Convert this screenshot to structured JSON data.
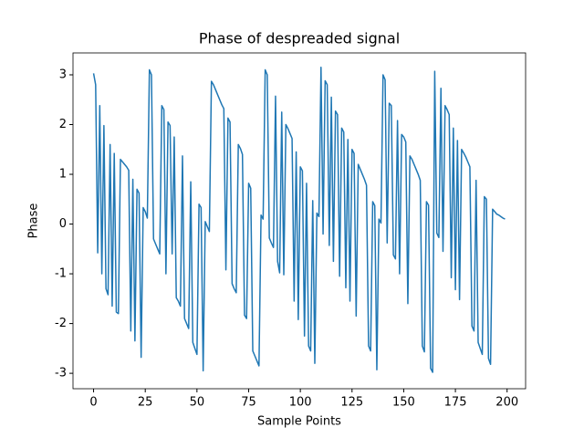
{
  "chart_data": {
    "type": "line",
    "title": "Phase of despreaded signal",
    "x_label": "Sample Points",
    "y_label": "Phase",
    "x": [
      0,
      1,
      2,
      3,
      4,
      5,
      6,
      7,
      8,
      9,
      10,
      11,
      12,
      13,
      14,
      15,
      16,
      17,
      18,
      19,
      20,
      21,
      22,
      23,
      24,
      25,
      26,
      27,
      28,
      29,
      30,
      31,
      32,
      33,
      34,
      35,
      36,
      37,
      38,
      39,
      40,
      41,
      42,
      43,
      44,
      45,
      46,
      47,
      48,
      49,
      50,
      51,
      52,
      53,
      54,
      55,
      56,
      57,
      58,
      59,
      60,
      61,
      62,
      63,
      64,
      65,
      66,
      67,
      68,
      69,
      70,
      71,
      72,
      73,
      74,
      75,
      76,
      77,
      78,
      79,
      80,
      81,
      82,
      83,
      84,
      85,
      86,
      87,
      88,
      89,
      90,
      91,
      92,
      93,
      94,
      95,
      96,
      97,
      98,
      99,
      100,
      101,
      102,
      103,
      104,
      105,
      106,
      107,
      108,
      109,
      110,
      111,
      112,
      113,
      114,
      115,
      116,
      117,
      118,
      119,
      120,
      121,
      122,
      123,
      124,
      125,
      126,
      127,
      128,
      129,
      130,
      131,
      132,
      133,
      134,
      135,
      136,
      137,
      138,
      139,
      140,
      141,
      142,
      143,
      144,
      145,
      146,
      147,
      148,
      149,
      150,
      151,
      152,
      153,
      154,
      155,
      156,
      157,
      158,
      159,
      160,
      161,
      162,
      163,
      164,
      165,
      166,
      167,
      168,
      169,
      170,
      171,
      172,
      173,
      174,
      175,
      176,
      177,
      178,
      179,
      180,
      181,
      182,
      183,
      184,
      185,
      186,
      187,
      188,
      189,
      190,
      191,
      192,
      193,
      194,
      195,
      196,
      197,
      198,
      199
    ],
    "series": [
      {
        "color": "#1f77b4",
        "values": [
          3.03,
          2.8,
          -0.58,
          2.38,
          -1.0,
          1.98,
          -1.3,
          -1.42,
          1.6,
          -1.65,
          1.42,
          -1.77,
          -1.8,
          1.3,
          1.25,
          1.2,
          1.15,
          1.08,
          -2.15,
          0.9,
          -2.35,
          0.7,
          0.62,
          -2.68,
          0.33,
          0.25,
          0.12,
          3.1,
          3.0,
          -0.3,
          -0.4,
          -0.5,
          -0.6,
          2.38,
          2.3,
          -1.0,
          2.05,
          1.98,
          -0.6,
          1.75,
          -1.48,
          -1.55,
          -1.65,
          1.37,
          -1.9,
          -2.0,
          -2.1,
          0.85,
          -2.38,
          -2.5,
          -2.62,
          0.4,
          0.33,
          -2.95,
          0.05,
          -0.05,
          -0.15,
          2.87,
          2.8,
          2.7,
          2.6,
          2.5,
          2.4,
          2.32,
          -0.92,
          2.13,
          2.05,
          -1.2,
          -1.3,
          -1.38,
          1.6,
          1.52,
          1.4,
          -1.83,
          -1.9,
          0.82,
          0.72,
          -2.55,
          -2.65,
          -2.75,
          -2.85,
          0.18,
          0.1,
          3.1,
          3.0,
          -0.28,
          -0.38,
          -0.47,
          2.57,
          -0.75,
          -0.98,
          2.25,
          -1.02,
          2.0,
          1.92,
          1.82,
          1.72,
          -1.55,
          1.45,
          -1.92,
          1.15,
          1.07,
          -2.25,
          0.82,
          -2.45,
          -2.55,
          0.47,
          -2.8,
          0.22,
          0.15,
          3.15,
          -0.2,
          2.88,
          2.8,
          -0.43,
          2.55,
          -0.75,
          2.27,
          2.2,
          -1.05,
          1.93,
          1.85,
          -1.28,
          1.7,
          -1.55,
          1.5,
          1.42,
          -1.85,
          1.2,
          1.1,
          1.0,
          0.9,
          0.78,
          -2.45,
          -2.55,
          0.45,
          0.37,
          -2.93,
          0.1,
          0.02,
          3.0,
          2.9,
          -0.38,
          2.43,
          2.38,
          -0.62,
          -0.7,
          2.08,
          -1.0,
          1.8,
          1.75,
          1.65,
          -1.6,
          1.37,
          1.3,
          1.2,
          1.1,
          1.0,
          0.88,
          -2.45,
          -2.57,
          0.45,
          0.38,
          -2.9,
          -2.98,
          3.07,
          -0.18,
          -0.27,
          2.73,
          -0.55,
          2.38,
          2.3,
          2.2,
          -1.08,
          1.93,
          -1.32,
          1.68,
          -1.52,
          1.5,
          1.43,
          1.35,
          1.25,
          1.15,
          -2.05,
          -2.15,
          0.88,
          -2.38,
          -2.5,
          -2.62,
          0.55,
          0.5,
          -2.7,
          -2.82,
          0.3,
          0.25,
          0.2,
          0.18,
          0.15,
          0.12,
          0.1
        ]
      }
    ],
    "xlim": [
      -9.95,
      208.95
    ],
    "xticks": [
      0,
      25,
      50,
      75,
      100,
      125,
      150,
      175,
      200
    ],
    "ylim": [
      -3.31,
      3.44
    ],
    "yticks": [
      -3,
      -2,
      -1,
      0,
      1,
      2,
      3
    ],
    "grid": false
  }
}
